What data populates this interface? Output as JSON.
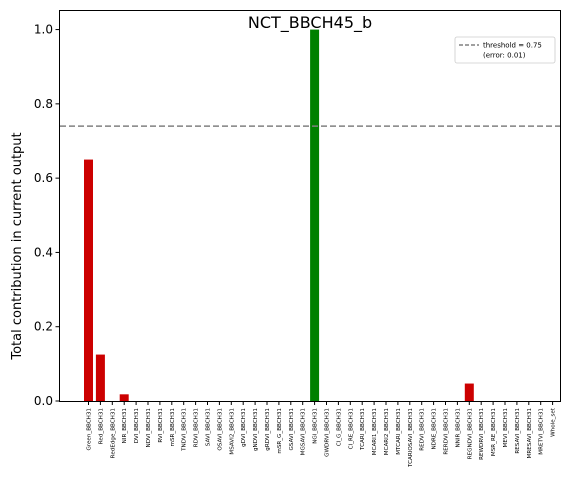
{
  "chart_data": {
    "type": "bar",
    "title": "NCT_BBCH45_b",
    "xlabel": "",
    "ylabel": "Total contribution in current output",
    "ylim": [
      0,
      1.05
    ],
    "yticks": [
      0.0,
      0.2,
      0.4,
      0.6,
      0.8,
      1.0
    ],
    "ytick_labels": [
      "0.0",
      "0.2",
      "0.4",
      "0.6",
      "0.8",
      "1.0"
    ],
    "categories": [
      "Green_BBCH31",
      "Red_BBCH31",
      "RedEdge_BBCH31",
      "NIR_BBCH31",
      "DVI_BBCH31",
      "NDVI_BBCH31",
      "RVI_BBCH31",
      "mSR_BBCH31",
      "TNDVI_BBCH31",
      "RDVI_BBCH31",
      "SAVI_BBCH31",
      "OSAVI_BBCH31",
      "MSAVI2_BBCH31",
      "gDVI_BBCH31",
      "gNDVI_BBCH31",
      "gRDVI_BBCH31",
      "mSR_G_BBCH31",
      "GSAVI_BBCH31",
      "MGSAVI_BBCH31",
      "NGI_BBCH31",
      "GWDRVI_BBCH31",
      "CI_G_BBCH31",
      "CI_RE_BBCH31",
      "TCARI_BBCH31",
      "MCARI1_BBCH31",
      "MCARI2_BBCH31",
      "MTCARI_BBCH31",
      "TCARIOSAVI_BBCH31",
      "REDVI_BBCH31",
      "NDRE_BBCH31",
      "RERDVI_BBCH31",
      "NNIR_BBCH31",
      "REGNDVI_BBCH31",
      "REWDRVI_BBCH31",
      "MSR_RE_BBCH31",
      "MEVI_BBCH31",
      "RESAVI_BBCH31",
      "MRESAVI_BBCH31",
      "MRETVI_BBCH31",
      "Whole_set"
    ],
    "values": [
      0.65,
      0.125,
      0.0,
      0.018,
      0.0,
      0.0,
      0.0,
      0.0,
      0.0,
      0.0,
      0.0,
      0.0,
      0.0,
      0.0,
      0.0,
      0.0,
      0.0,
      0.0,
      0.0,
      1.0,
      0.0,
      0.0,
      0.0,
      0.0,
      0.0,
      0.0,
      0.0,
      0.0,
      0.0,
      0.0,
      0.0,
      0.0,
      0.047,
      0.0,
      0.0,
      0.0,
      0.0,
      0.0,
      0.0,
      0.0
    ],
    "threshold": {
      "value": 0.74,
      "legend_line1": "threshold = 0.75",
      "legend_line2": "(error: 0.01)",
      "color": "#808080"
    },
    "legend_position": "top-right",
    "grid": false,
    "colors": {
      "above_threshold": "#008000",
      "below_threshold": "#cc0000"
    }
  }
}
